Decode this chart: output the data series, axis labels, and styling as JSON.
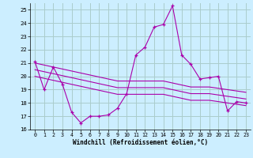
{
  "xlabel": "Windchill (Refroidissement éolien,°C)",
  "bg_color": "#cceeff",
  "grid_color": "#aacccc",
  "line_color": "#aa00aa",
  "xlim": [
    -0.5,
    23.5
  ],
  "ylim": [
    16,
    25.5
  ],
  "yticks": [
    16,
    17,
    18,
    19,
    20,
    21,
    22,
    23,
    24,
    25
  ],
  "xticks": [
    0,
    1,
    2,
    3,
    4,
    5,
    6,
    7,
    8,
    9,
    10,
    11,
    12,
    13,
    14,
    15,
    16,
    17,
    18,
    19,
    20,
    21,
    22,
    23
  ],
  "main_y": [
    21.1,
    19.0,
    20.7,
    19.4,
    17.3,
    16.5,
    17.0,
    17.0,
    17.1,
    17.6,
    18.7,
    21.6,
    22.2,
    23.7,
    23.9,
    25.3,
    21.6,
    20.9,
    19.8,
    19.9,
    20.0,
    17.4,
    18.1,
    18.0
  ],
  "line2_y": [
    21.0,
    20.85,
    20.7,
    20.55,
    20.4,
    20.25,
    20.1,
    19.95,
    19.8,
    19.65,
    19.65,
    19.65,
    19.65,
    19.65,
    19.65,
    19.5,
    19.35,
    19.2,
    19.2,
    19.2,
    19.1,
    19.0,
    18.9,
    18.8
  ],
  "line3_y": [
    20.5,
    20.35,
    20.2,
    20.05,
    19.9,
    19.75,
    19.6,
    19.45,
    19.3,
    19.15,
    19.15,
    19.15,
    19.15,
    19.15,
    19.15,
    19.0,
    18.85,
    18.7,
    18.7,
    18.7,
    18.6,
    18.5,
    18.4,
    18.3
  ],
  "line4_y": [
    20.0,
    19.85,
    19.7,
    19.55,
    19.4,
    19.25,
    19.1,
    18.95,
    18.8,
    18.65,
    18.65,
    18.65,
    18.65,
    18.65,
    18.65,
    18.5,
    18.35,
    18.2,
    18.2,
    18.2,
    18.1,
    18.0,
    17.9,
    17.8
  ]
}
